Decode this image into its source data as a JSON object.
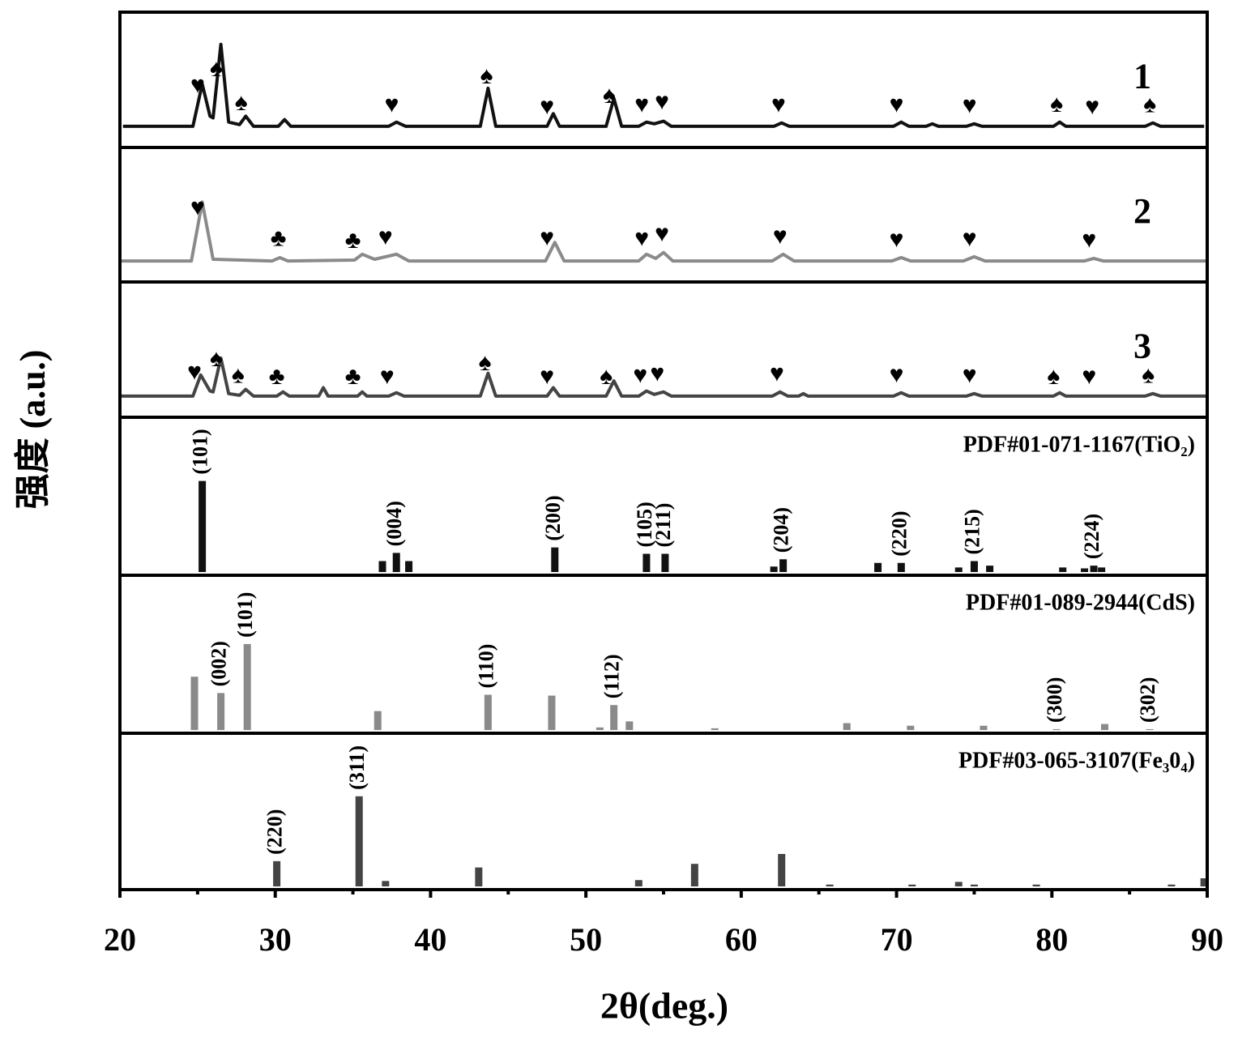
{
  "chart_data": {
    "type": "stacked",
    "xlabel": "2θ(deg.)",
    "ylabel": "强度 (a.u.)",
    "xlim": [
      20,
      90
    ],
    "xticks": [
      20,
      30,
      40,
      50,
      60,
      70,
      80,
      90
    ],
    "xminorticks": [
      25,
      35,
      45,
      55,
      65,
      75,
      85
    ],
    "panels": [
      {
        "type": "line",
        "name": "1",
        "color": "#111111",
        "ylim": [
          -25,
          135
        ],
        "x": [
          20.2,
          24.7,
          25.3,
          25.8,
          26.0,
          26.5,
          27.0,
          27.7,
          28.1,
          28.6,
          30.2,
          30.6,
          31.0,
          37.3,
          37.8,
          38.4,
          43.2,
          43.7,
          44.2,
          47.5,
          47.9,
          48.3,
          51.3,
          51.8,
          52.3,
          53.4,
          53.9,
          54.4,
          55.0,
          55.5,
          62.1,
          62.6,
          63.1,
          69.8,
          70.3,
          70.8,
          71.9,
          72.3,
          72.7,
          74.5,
          75.0,
          75.5,
          80.1,
          80.5,
          80.9,
          86.0,
          86.5,
          87.0,
          89.8
        ],
        "values": [
          0,
          0,
          50,
          12,
          10,
          97,
          5,
          2,
          12,
          0,
          0,
          8,
          0,
          0,
          5,
          0,
          0,
          45,
          0,
          0,
          15,
          0,
          0,
          33,
          0,
          0,
          5,
          3,
          6,
          0,
          0,
          4,
          0,
          0,
          5,
          0,
          0,
          3,
          0,
          0,
          3,
          0,
          0,
          5,
          0,
          0,
          4,
          0,
          0
        ],
        "markers": [
          {
            "symbol": "♥",
            "x": 25.0
          },
          {
            "symbol": "♠",
            "x": 26.2
          },
          {
            "symbol": "♠",
            "x": 27.8
          },
          {
            "symbol": "♥",
            "x": 37.5
          },
          {
            "symbol": "♠",
            "x": 43.6
          },
          {
            "symbol": "♥",
            "x": 47.5
          },
          {
            "symbol": "♠",
            "x": 51.5
          },
          {
            "symbol": "♥",
            "x": 53.6
          },
          {
            "symbol": "♥",
            "x": 54.9
          },
          {
            "symbol": "♥",
            "x": 62.4
          },
          {
            "symbol": "♥",
            "x": 70.0
          },
          {
            "symbol": "♥",
            "x": 74.7
          },
          {
            "symbol": "♠",
            "x": 80.3
          },
          {
            "symbol": "♥",
            "x": 82.6
          },
          {
            "symbol": "♠",
            "x": 86.3
          }
        ]
      },
      {
        "type": "line",
        "name": "2",
        "color": "#8a8a8a",
        "ylim": [
          -25,
          135
        ],
        "x": [
          20.0,
          24.6,
          25.3,
          26.0,
          29.8,
          30.3,
          30.8,
          35.1,
          35.6,
          36.4,
          37.8,
          38.6,
          47.4,
          48.0,
          48.6,
          53.4,
          53.9,
          54.5,
          55.0,
          55.6,
          62.0,
          62.7,
          63.4,
          69.7,
          70.3,
          70.9,
          74.3,
          75.0,
          75.7,
          82.1,
          82.7,
          83.3,
          90.0
        ],
        "values": [
          0,
          0,
          70,
          2,
          0,
          4,
          0,
          1,
          8,
          2,
          8,
          0,
          0,
          22,
          0,
          0,
          8,
          3,
          10,
          0,
          0,
          8,
          0,
          0,
          4,
          0,
          0,
          5,
          0,
          0,
          3,
          0,
          0
        ],
        "markers": [
          {
            "symbol": "♥",
            "x": 25.0
          },
          {
            "symbol": "♣",
            "x": 30.2
          },
          {
            "symbol": "♣",
            "x": 35.0
          },
          {
            "symbol": "♥",
            "x": 37.1
          },
          {
            "symbol": "♥",
            "x": 47.5
          },
          {
            "symbol": "♥",
            "x": 53.6
          },
          {
            "symbol": "♥",
            "x": 54.9
          },
          {
            "symbol": "♥",
            "x": 62.5
          },
          {
            "symbol": "♥",
            "x": 70.0
          },
          {
            "symbol": "♥",
            "x": 74.7
          },
          {
            "symbol": "♥",
            "x": 82.4
          }
        ]
      },
      {
        "type": "line",
        "name": "3",
        "color": "#444444",
        "ylim": [
          -25,
          135
        ],
        "x": [
          20.0,
          24.7,
          25.2,
          25.8,
          26.0,
          26.5,
          27.0,
          27.7,
          28.1,
          28.6,
          30.1,
          30.5,
          30.9,
          32.8,
          33.1,
          33.4,
          35.3,
          35.6,
          35.9,
          37.3,
          37.8,
          38.3,
          43.2,
          43.7,
          44.2,
          47.5,
          47.9,
          48.3,
          51.3,
          51.8,
          52.3,
          53.4,
          53.9,
          54.4,
          55.0,
          55.5,
          62.0,
          62.5,
          63.0,
          63.7,
          64.0,
          64.3,
          69.8,
          70.3,
          70.8,
          74.5,
          75.0,
          75.5,
          80.1,
          80.5,
          80.9,
          86.0,
          86.5,
          87.0,
          90.0
        ],
        "values": [
          0,
          0,
          25,
          6,
          5,
          45,
          3,
          1,
          8,
          0,
          0,
          5,
          0,
          0,
          10,
          0,
          0,
          5,
          0,
          0,
          4,
          0,
          0,
          27,
          0,
          0,
          10,
          0,
          0,
          18,
          0,
          0,
          6,
          2,
          5,
          0,
          0,
          5,
          0,
          0,
          3,
          0,
          0,
          4,
          0,
          0,
          3,
          0,
          0,
          4,
          0,
          0,
          3,
          0,
          0
        ],
        "markers": [
          {
            "symbol": "♥",
            "x": 24.8
          },
          {
            "symbol": "♠",
            "x": 26.2
          },
          {
            "symbol": "♠",
            "x": 27.6
          },
          {
            "symbol": "♣",
            "x": 30.1
          },
          {
            "symbol": "♣",
            "x": 35.0
          },
          {
            "symbol": "♥",
            "x": 37.2
          },
          {
            "symbol": "♠",
            "x": 43.5
          },
          {
            "symbol": "♥",
            "x": 47.5
          },
          {
            "symbol": "♠",
            "x": 51.3
          },
          {
            "symbol": "♥",
            "x": 53.5
          },
          {
            "symbol": "♥",
            "x": 54.6
          },
          {
            "symbol": "♥",
            "x": 62.3
          },
          {
            "symbol": "♥",
            "x": 70.0
          },
          {
            "symbol": "♥",
            "x": 74.7
          },
          {
            "symbol": "♠",
            "x": 80.1
          },
          {
            "symbol": "♥",
            "x": 82.4
          },
          {
            "symbol": "♠",
            "x": 86.2
          }
        ]
      },
      {
        "type": "stick",
        "name": "PDF#01-071-1167(TiO₂)",
        "color": "#111111",
        "ylim": [
          0,
          170
        ],
        "x": [
          25.3,
          36.9,
          37.8,
          38.6,
          48.0,
          53.9,
          55.1,
          62.1,
          62.7,
          68.8,
          70.3,
          74.0,
          75.0,
          76.0,
          80.7,
          82.1,
          82.7,
          83.2
        ],
        "values": [
          100,
          12,
          21,
          12,
          27,
          20,
          20,
          6,
          14,
          10,
          10,
          5,
          12,
          7,
          5,
          4,
          7,
          5
        ],
        "labels": [
          "(101)",
          null,
          "(004)",
          null,
          "(200)",
          "(105)",
          "(211)",
          null,
          "(204)",
          null,
          "(220)",
          null,
          "(215)",
          null,
          null,
          null,
          "(224)",
          null
        ]
      },
      {
        "type": "stick",
        "name": "PDF#01-089-2944(CdS)",
        "color": "#8a8a8a",
        "ylim": [
          0,
          180
        ],
        "x": [
          24.8,
          26.5,
          28.2,
          36.6,
          43.7,
          47.8,
          50.9,
          51.8,
          52.8,
          58.3,
          66.8,
          70.9,
          75.6,
          80.3,
          83.4,
          86.3
        ],
        "values": [
          62,
          43,
          100,
          22,
          41,
          40,
          3,
          29,
          10,
          2,
          8,
          5,
          5,
          1,
          7,
          1
        ],
        "labels": [
          null,
          "(002)",
          "(101)",
          null,
          "(110)",
          null,
          null,
          "(112)",
          null,
          null,
          null,
          null,
          null,
          "(300)",
          null,
          "(302)"
        ]
      },
      {
        "type": "stick",
        "name": "PDF#03-065-3107(Fe₃0₄)",
        "color": "#444444",
        "ylim": [
          0,
          170
        ],
        "x": [
          30.1,
          35.4,
          37.1,
          43.1,
          53.4,
          57.0,
          62.6,
          65.7,
          71.0,
          74.0,
          75.0,
          79.0,
          87.7,
          89.8
        ],
        "values": [
          28,
          100,
          6,
          21,
          7,
          25,
          36,
          2,
          2,
          5,
          2,
          2,
          2,
          9
        ],
        "labels": [
          "(220)",
          "(311)",
          null,
          null,
          null,
          null,
          null,
          null,
          null,
          null,
          null,
          null,
          null,
          null
        ]
      }
    ]
  }
}
